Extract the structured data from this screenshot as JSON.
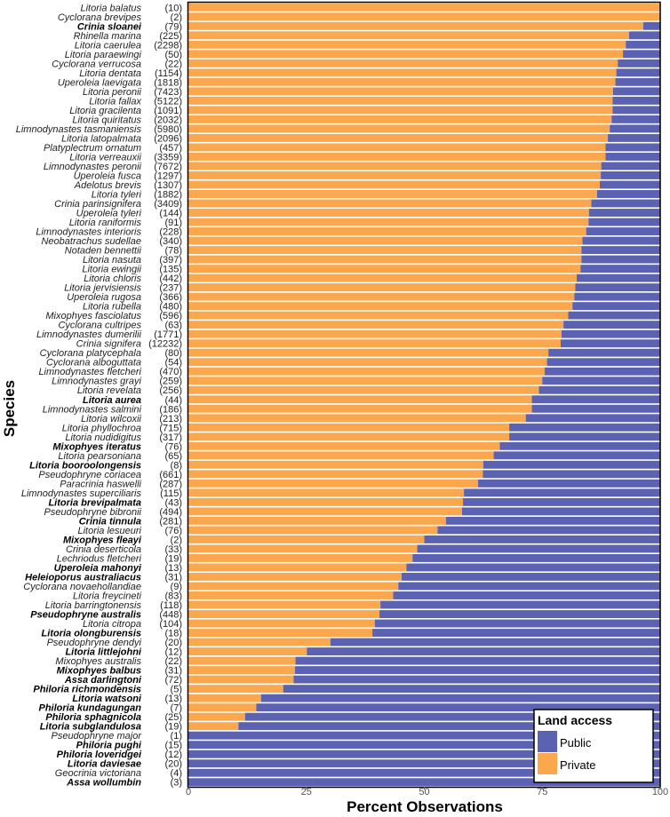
{
  "chart_data": {
    "type": "bar",
    "orientation": "horizontal",
    "stacked": "percent",
    "xlabel": "Percent Observations",
    "ylabel": "Species",
    "xlim": [
      0,
      100
    ],
    "xticks": [
      "0",
      "25",
      "50",
      "75",
      "100"
    ],
    "grid": false,
    "legend": {
      "title": "Land access",
      "placement": "bottom-right",
      "entries": [
        {
          "name": "Public",
          "color": "#5A62B1"
        },
        {
          "name": "Private",
          "color": "#FAA74E"
        }
      ]
    },
    "series": [
      {
        "name": "Private",
        "color": "#FAA74E"
      },
      {
        "name": "Public",
        "color": "#5A62B1"
      }
    ],
    "note_bold": "bold species names are emphasized in the figure",
    "rows": [
      {
        "species": "Litoria balatus",
        "n": "(10)",
        "bold": false,
        "private": 100
      },
      {
        "species": "Cyclorana brevipes",
        "n": "(2)",
        "bold": false,
        "private": 100
      },
      {
        "species": "Crinia sloanei",
        "n": "(79)",
        "bold": true,
        "private": 96.4
      },
      {
        "species": "Rhinella marina",
        "n": "(225)",
        "bold": false,
        "private": 93.4
      },
      {
        "species": "Litoria caerulea",
        "n": "(2298)",
        "bold": false,
        "private": 92.7
      },
      {
        "species": "Litoria paraewingi",
        "n": "(50)",
        "bold": false,
        "private": 92.1
      },
      {
        "species": "Cyclorana verrucosa",
        "n": "(22)",
        "bold": false,
        "private": 91.0
      },
      {
        "species": "Litoria dentata",
        "n": "(1154)",
        "bold": false,
        "private": 90.7
      },
      {
        "species": "Uperoleia laevigata",
        "n": "(1818)",
        "bold": false,
        "private": 90.5
      },
      {
        "species": "Litoria peronii",
        "n": "(7423)",
        "bold": false,
        "private": 90.0
      },
      {
        "species": "Litoria fallax",
        "n": "(5122)",
        "bold": false,
        "private": 89.9
      },
      {
        "species": "Litoria gracilenta",
        "n": "(1091)",
        "bold": false,
        "private": 89.9
      },
      {
        "species": "Litoria quiritatus",
        "n": "(2032)",
        "bold": false,
        "private": 89.7
      },
      {
        "species": "Limnodynastes tasmaniensis",
        "n": "(5980)",
        "bold": false,
        "private": 89.3
      },
      {
        "species": "Litoria latopalmata",
        "n": "(2096)",
        "bold": false,
        "private": 88.9
      },
      {
        "species": "Platyplectrum ornatum",
        "n": "(457)",
        "bold": false,
        "private": 88.4
      },
      {
        "species": "Litoria verreauxii",
        "n": "(3359)",
        "bold": false,
        "private": 88.4
      },
      {
        "species": "Limnodynastes peronii",
        "n": "(7672)",
        "bold": false,
        "private": 87.5
      },
      {
        "species": "Uperoleia fusca",
        "n": "(1297)",
        "bold": false,
        "private": 87.4
      },
      {
        "species": "Adelotus brevis",
        "n": "(1307)",
        "bold": false,
        "private": 87.2
      },
      {
        "species": "Litoria tyleri",
        "n": "(1882)",
        "bold": false,
        "private": 86.6
      },
      {
        "species": "Crinia parinsignifera",
        "n": "(3409)",
        "bold": false,
        "private": 85.4
      },
      {
        "species": "Uperoleia tyleri",
        "n": "(144)",
        "bold": false,
        "private": 84.9
      },
      {
        "species": "Litoria raniformis",
        "n": "(91)",
        "bold": false,
        "private": 84.8
      },
      {
        "species": "Limnodynastes interioris",
        "n": "(228)",
        "bold": false,
        "private": 84.3
      },
      {
        "species": "Neobatrachus sudellae",
        "n": "(340)",
        "bold": false,
        "private": 83.5
      },
      {
        "species": "Notaden bennettii",
        "n": "(78)",
        "bold": false,
        "private": 83.3
      },
      {
        "species": "Litoria nasuta",
        "n": "(397)",
        "bold": false,
        "private": 83.3
      },
      {
        "species": "Litoria ewingii",
        "n": "(135)",
        "bold": false,
        "private": 83.1
      },
      {
        "species": "Litoria chloris",
        "n": "(442)",
        "bold": false,
        "private": 82.3
      },
      {
        "species": "Litoria jervisiensis",
        "n": "(237)",
        "bold": false,
        "private": 82.0
      },
      {
        "species": "Uperoleia rugosa",
        "n": "(366)",
        "bold": false,
        "private": 81.8
      },
      {
        "species": "Litoria rubella",
        "n": "(480)",
        "bold": false,
        "private": 81.4
      },
      {
        "species": "Mixophyes fasciolatus",
        "n": "(596)",
        "bold": false,
        "private": 80.5
      },
      {
        "species": "Cyclorana cultripes",
        "n": "(63)",
        "bold": false,
        "private": 79.5
      },
      {
        "species": "Limnodynastes dumerilii",
        "n": "(1771)",
        "bold": false,
        "private": 79.1
      },
      {
        "species": "Crinia signifera",
        "n": "(12232)",
        "bold": false,
        "private": 78.9
      },
      {
        "species": "Cyclorana platycephala",
        "n": "(80)",
        "bold": false,
        "private": 76.3
      },
      {
        "species": "Cyclorana alboguttata",
        "n": "(54)",
        "bold": false,
        "private": 76.0
      },
      {
        "species": "Limnodynastes fletcheri",
        "n": "(470)",
        "bold": false,
        "private": 75.5
      },
      {
        "species": "Limnodynastes grayi",
        "n": "(259)",
        "bold": false,
        "private": 75.0
      },
      {
        "species": "Litoria revelata",
        "n": "(256)",
        "bold": false,
        "private": 74.3
      },
      {
        "species": "Litoria aurea",
        "n": "(44)",
        "bold": true,
        "private": 72.8
      },
      {
        "species": "Limnodynastes salmini",
        "n": "(186)",
        "bold": false,
        "private": 72.8
      },
      {
        "species": "Litoria wilcoxii",
        "n": "(213)",
        "bold": false,
        "private": 71.5
      },
      {
        "species": "Litoria phyllochroa",
        "n": "(715)",
        "bold": false,
        "private": 68.0
      },
      {
        "species": "Litoria nudidigitus",
        "n": "(317)",
        "bold": false,
        "private": 68.0
      },
      {
        "species": "Mixophyes iteratus",
        "n": "(76)",
        "bold": true,
        "private": 66.0
      },
      {
        "species": "Litoria pearsoniana",
        "n": "(65)",
        "bold": false,
        "private": 64.7
      },
      {
        "species": "Litoria booroolongensis",
        "n": "(8)",
        "bold": true,
        "private": 62.5
      },
      {
        "species": "Pseudophryne coriacea",
        "n": "(661)",
        "bold": false,
        "private": 62.4
      },
      {
        "species": "Paracrinia haswelli",
        "n": "(287)",
        "bold": false,
        "private": 61.4
      },
      {
        "species": "Limnodynastes superciliaris",
        "n": "(115)",
        "bold": false,
        "private": 58.4
      },
      {
        "species": "Litoria brevipalmata",
        "n": "(43)",
        "bold": true,
        "private": 58.2
      },
      {
        "species": "Pseudophryne bibronii",
        "n": "(494)",
        "bold": false,
        "private": 58.0
      },
      {
        "species": "Crinia tinnula",
        "n": "(281)",
        "bold": true,
        "private": 54.6
      },
      {
        "species": "Litoria lesueuri",
        "n": "(76)",
        "bold": false,
        "private": 52.8
      },
      {
        "species": "Mixophyes fleayi",
        "n": "(2)",
        "bold": true,
        "private": 50.0
      },
      {
        "species": "Crinia deserticola",
        "n": "(33)",
        "bold": false,
        "private": 48.5
      },
      {
        "species": "Lechriodus fletcheri",
        "n": "(19)",
        "bold": false,
        "private": 47.5
      },
      {
        "species": "Uperoleia mahonyi",
        "n": "(13)",
        "bold": true,
        "private": 46.2
      },
      {
        "species": "Heleioporus australiacus",
        "n": "(31)",
        "bold": true,
        "private": 45.2
      },
      {
        "species": "Cyclorana novaehollandiae",
        "n": "(9)",
        "bold": false,
        "private": 44.5
      },
      {
        "species": "Litoria freycineti",
        "n": "(83)",
        "bold": false,
        "private": 43.4
      },
      {
        "species": "Litoria barringtonensis",
        "n": "(118)",
        "bold": false,
        "private": 40.7
      },
      {
        "species": "Pseudophryne australis",
        "n": "(448)",
        "bold": true,
        "private": 40.5
      },
      {
        "species": "Litoria citropa",
        "n": "(104)",
        "bold": false,
        "private": 39.5
      },
      {
        "species": "Litoria olongburensis",
        "n": "(18)",
        "bold": true,
        "private": 39.0
      },
      {
        "species": "Pseudophryne dendyi",
        "n": "(20)",
        "bold": false,
        "private": 30.1
      },
      {
        "species": "Litoria littlejohni",
        "n": "(12)",
        "bold": true,
        "private": 25.1
      },
      {
        "species": "Mixophyes australis",
        "n": "(22)",
        "bold": false,
        "private": 22.7
      },
      {
        "species": "Mixophyes balbus",
        "n": "(31)",
        "bold": true,
        "private": 22.6
      },
      {
        "species": "Assa darlingtoni",
        "n": "(72)",
        "bold": true,
        "private": 22.3
      },
      {
        "species": "Philoria richmondensis",
        "n": "(5)",
        "bold": true,
        "private": 20.1
      },
      {
        "species": "Litoria watsoni",
        "n": "(13)",
        "bold": true,
        "private": 15.4
      },
      {
        "species": "Philoria kundagungan",
        "n": "(7)",
        "bold": true,
        "private": 14.4
      },
      {
        "species": "Philoria sphagnicola",
        "n": "(25)",
        "bold": true,
        "private": 12.0
      },
      {
        "species": "Litoria subglandulosa",
        "n": "(19)",
        "bold": true,
        "private": 10.6
      },
      {
        "species": "Pseudophryne major",
        "n": "(1)",
        "bold": false,
        "private": 0
      },
      {
        "species": "Philoria pughi",
        "n": "(15)",
        "bold": true,
        "private": 0
      },
      {
        "species": "Philoria loveridgei",
        "n": "(12)",
        "bold": true,
        "private": 0
      },
      {
        "species": "Litoria daviesae",
        "n": "(20)",
        "bold": true,
        "private": 0
      },
      {
        "species": "Geocrinia victoriana",
        "n": "(4)",
        "bold": false,
        "private": 0
      },
      {
        "species": "Assa wollumbin",
        "n": "(3)",
        "bold": true,
        "private": 0
      }
    ]
  }
}
